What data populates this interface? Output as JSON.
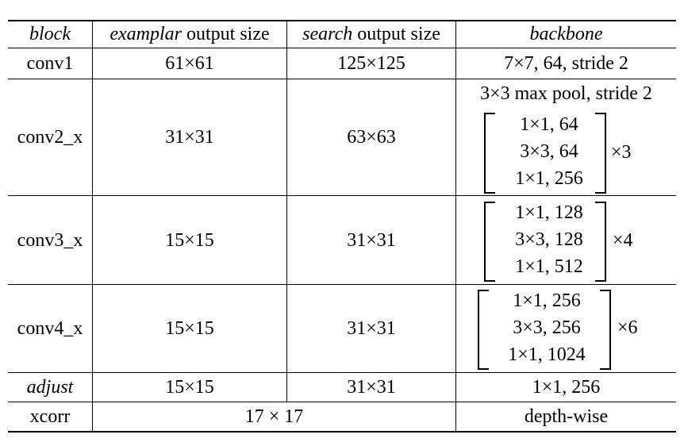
{
  "header": {
    "block": "block",
    "exemplar_italic": "examplar",
    "exemplar_rest": " output size",
    "search_italic": "search",
    "search_rest": " output size",
    "backbone": "backbone"
  },
  "rows": {
    "conv1": {
      "block": "conv1",
      "exemplar": "61×61",
      "search": "125×125",
      "backbone": "7×7, 64, stride 2"
    },
    "conv2": {
      "block": "conv2_x",
      "exemplar": "31×31",
      "search": "63×63",
      "pool": "3×3 max pool, stride 2",
      "layers": [
        "1×1, 64",
        "3×3, 64",
        "1×1, 256"
      ],
      "repeat": "×3"
    },
    "conv3": {
      "block": "conv3_x",
      "exemplar": "15×15",
      "search": "31×31",
      "layers": [
        "1×1, 128",
        "3×3, 128",
        "1×1, 512"
      ],
      "repeat": "×4"
    },
    "conv4": {
      "block": "conv4_x",
      "exemplar": "15×15",
      "search": "31×31",
      "layers": [
        "1×1, 256",
        "3×3, 256",
        "1×1, 1024"
      ],
      "repeat": "×6"
    },
    "adjust": {
      "block": "adjust",
      "exemplar": "15×15",
      "search": "31×31",
      "backbone": "1×1, 256"
    },
    "xcorr": {
      "block": "xcorr",
      "output": "17 × 17",
      "backbone": "depth-wise"
    }
  }
}
